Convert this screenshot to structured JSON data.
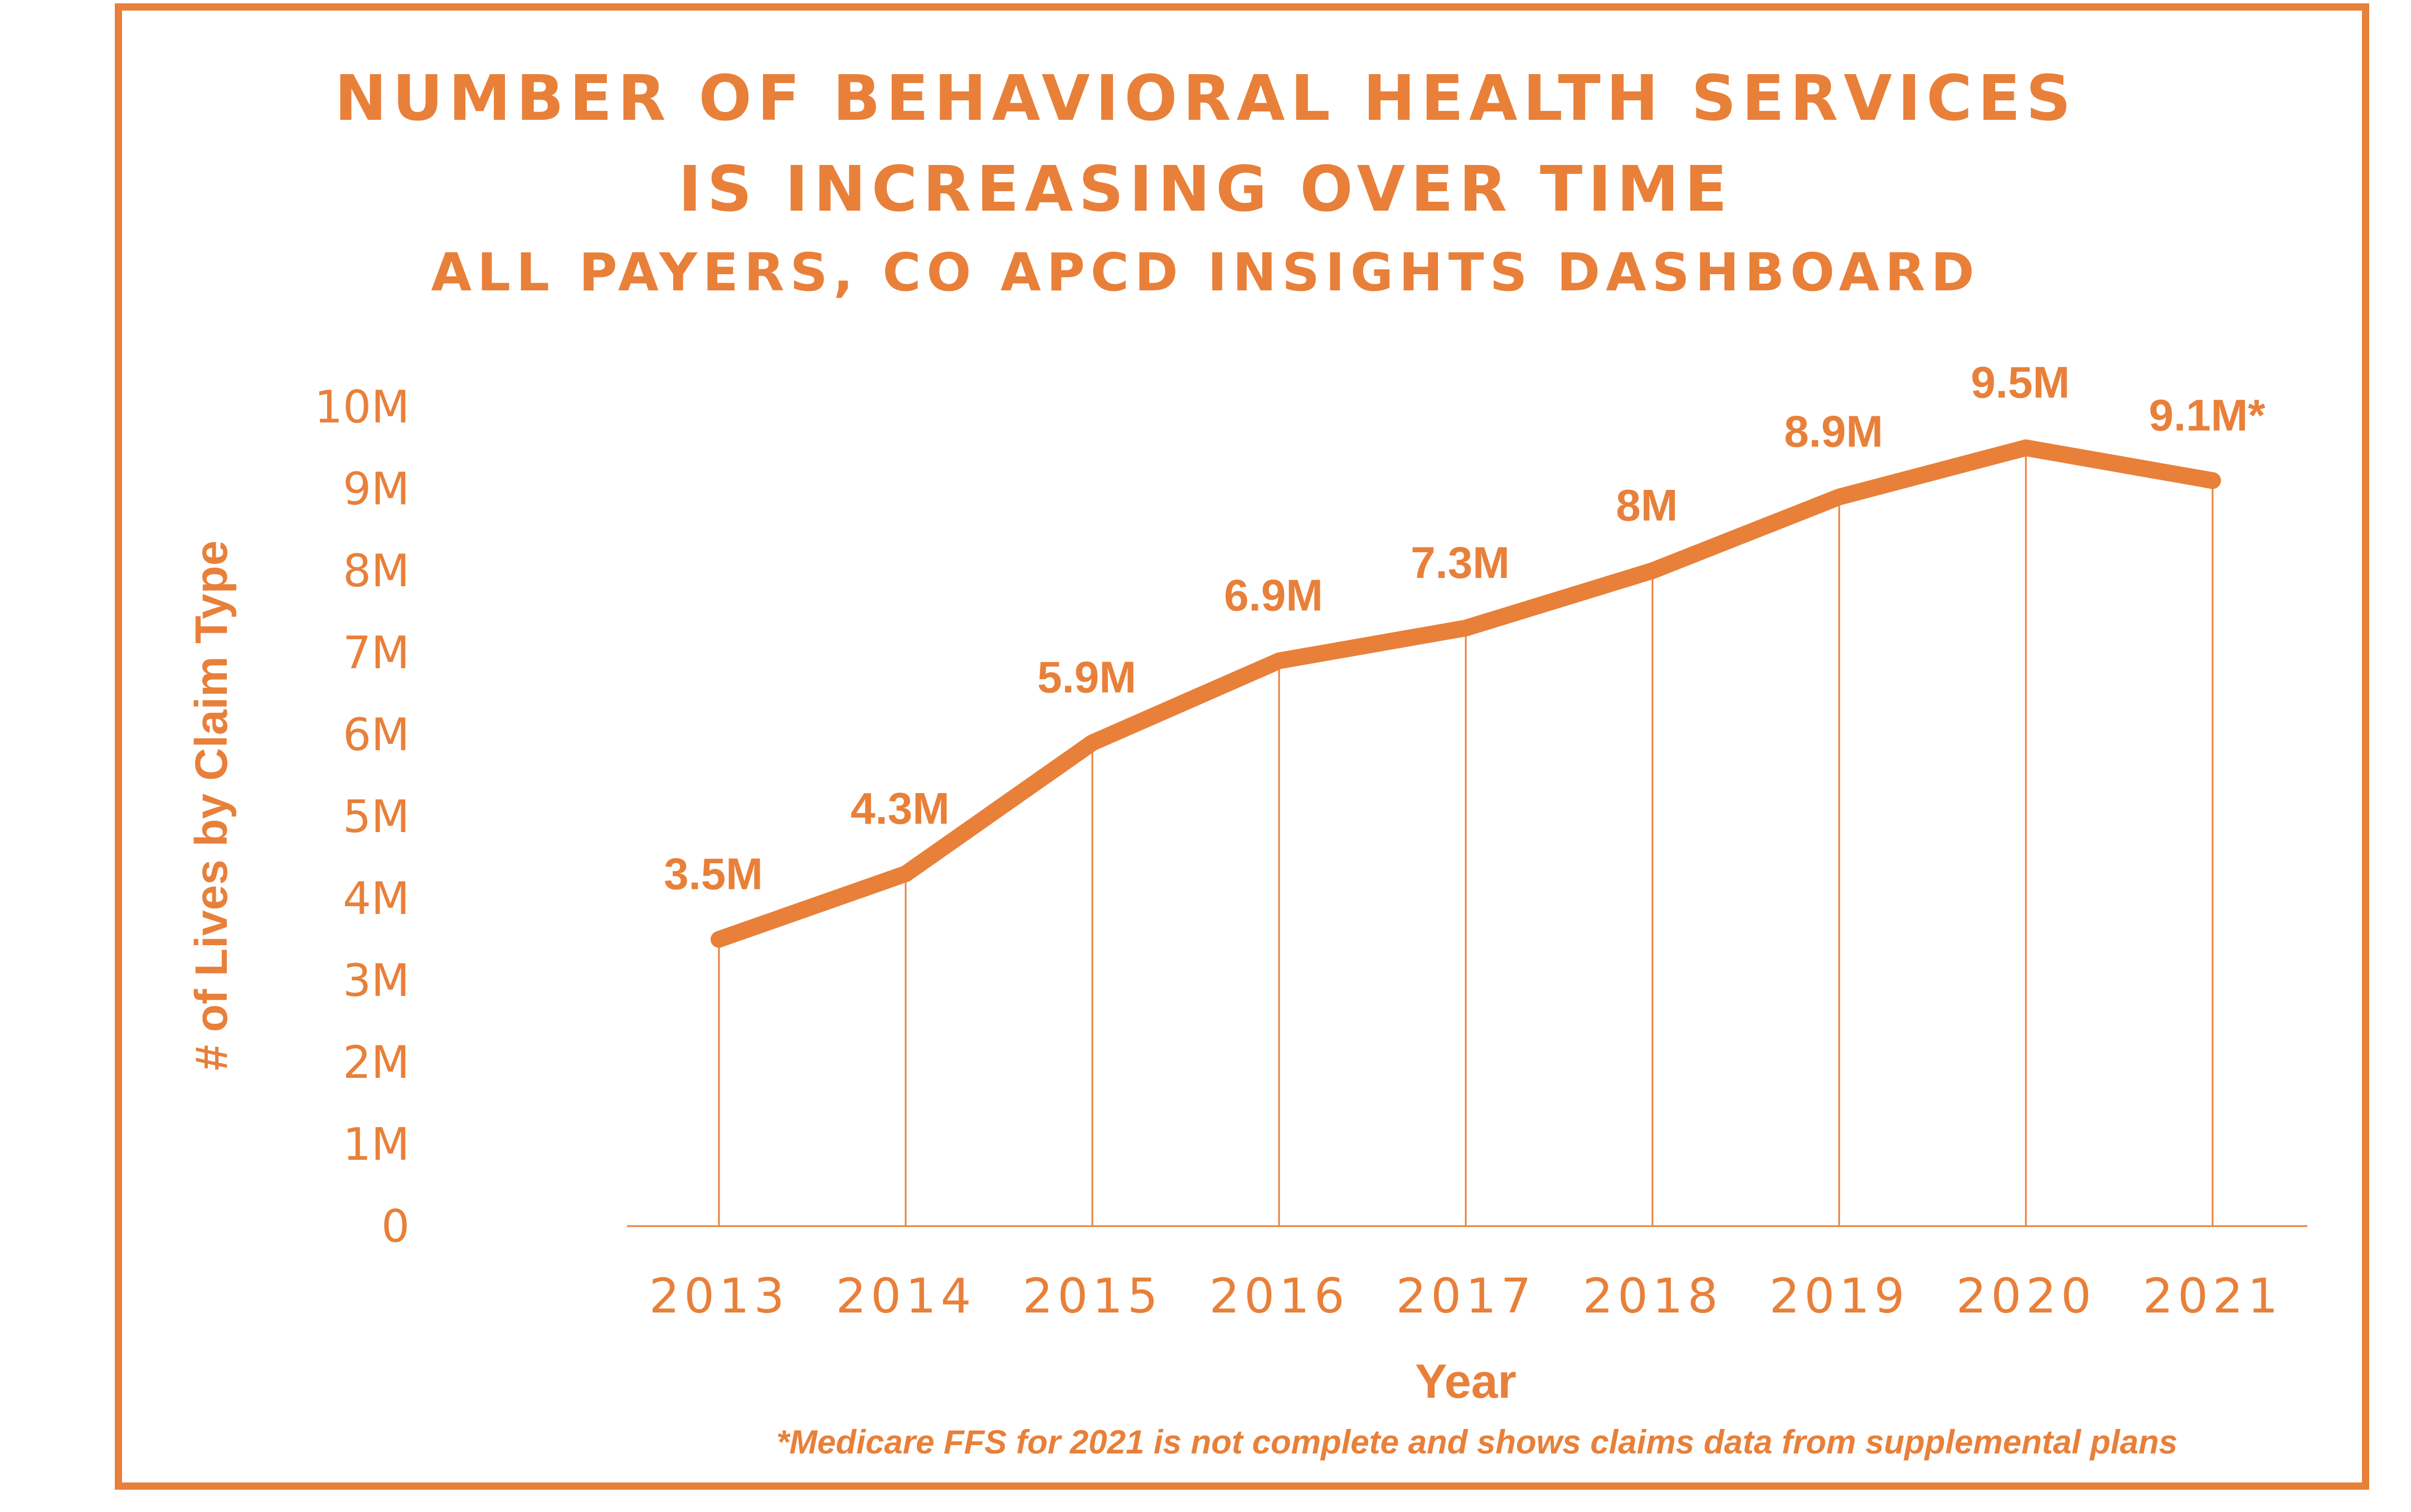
{
  "chart_data": {
    "type": "line",
    "title": "NUMBER OF BEHAVIORAL HEALTH SERVICES",
    "title_line2": "IS INCREASING OVER TIME",
    "subtitle": "ALL PAYERS, CO APCD INSIGHTS DASHBOARD",
    "xlabel": "Year",
    "ylabel": "# of  Lives by Claim Type",
    "categories": [
      "2013",
      "2014",
      "2015",
      "2016",
      "2017",
      "2018",
      "2019",
      "2020",
      "2021"
    ],
    "series": [
      {
        "values": [
          3.5,
          4.3,
          5.9,
          6.9,
          7.3,
          8.0,
          8.9,
          9.5,
          9.1
        ],
        "labels": [
          "3.5M",
          "4.3M",
          "5.9M",
          "6.9M",
          "7.3M",
          "8M",
          "8.9M",
          "9.5M",
          "9.1M*"
        ]
      }
    ],
    "y_ticks": [
      "0",
      "1M",
      "2M",
      "3M",
      "4M",
      "5M",
      "6M",
      "7M",
      "8M",
      "9M",
      "10M"
    ],
    "ylim": [
      0,
      10
    ],
    "grid": false,
    "legend": "none",
    "color": "#e8803a",
    "footnote": "*Medicare FFS for 2021 is not complete and shows claims data from supplemental plans"
  }
}
